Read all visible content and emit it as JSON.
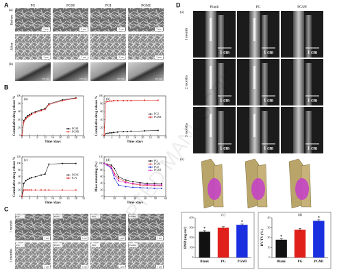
{
  "watermark": "ACCEPTED MANUSCRIPT",
  "panel_a": {
    "label": "A",
    "sub_a": "(a)",
    "sub_b": "(b)",
    "columns": [
      "PG",
      "PGM",
      "PGI",
      "PGMI"
    ],
    "rows": [
      "Before",
      "After"
    ],
    "scale_sem": "5 μm",
    "scale_tem": "100 nm"
  },
  "panel_b": {
    "label": "B"
  },
  "panel_c": {
    "label": "C",
    "columns": [
      "PG",
      "PGM",
      "PGI",
      "PGMI"
    ],
    "rows": [
      "1 month",
      "2 months"
    ],
    "scale": "1 μm"
  },
  "panel_d": {
    "label": "D",
    "sub_a": "(a)",
    "sub_b": "(b)",
    "columns": [
      "Blank",
      "PG",
      "PGMI"
    ],
    "rows": [
      "1 month",
      "2 months",
      "3 months"
    ],
    "scale": "1 cm"
  },
  "chart_data": [
    {
      "type": "line",
      "panel": "(a)",
      "x_label": "Time /days",
      "y_label": "Cumulative drug release %",
      "x": [
        0,
        1,
        2,
        3,
        4,
        5,
        7,
        10,
        12,
        14,
        21,
        28
      ],
      "xlim": [
        0,
        32
      ],
      "xticks": [
        0,
        4,
        8,
        12,
        16,
        20,
        24,
        28,
        32
      ],
      "ylim": [
        0,
        100
      ],
      "yticks": [
        0,
        20,
        40,
        60,
        80,
        100
      ],
      "legend": "lower right",
      "series": [
        {
          "name": "PGM",
          "color": "#111111",
          "values": [
            0,
            38,
            45,
            50,
            53,
            56,
            60,
            65,
            68,
            80,
            90,
            95
          ]
        },
        {
          "name": "PGMI",
          "color": "#e0201b",
          "values": [
            0,
            35,
            42,
            47,
            50,
            53,
            58,
            63,
            66,
            78,
            88,
            94
          ]
        }
      ]
    },
    {
      "type": "line",
      "panel": "(b)",
      "x_label": "Time /days",
      "y_label": "Cumulative drug release %",
      "x": [
        0,
        1,
        2,
        3,
        4,
        5,
        7,
        10,
        12,
        14,
        21,
        28
      ],
      "xlim": [
        0,
        32
      ],
      "xticks": [
        0,
        4,
        8,
        12,
        16,
        20,
        24,
        28,
        32
      ],
      "ylim": [
        0,
        100
      ],
      "yticks": [
        0,
        20,
        40,
        60,
        80,
        100
      ],
      "legend": "center right",
      "series": [
        {
          "name": "PGI",
          "color": "#111111",
          "values": [
            0,
            5,
            6,
            7,
            7,
            8,
            9,
            10,
            10,
            11,
            12,
            13
          ]
        },
        {
          "name": "PGMI",
          "color": "#e0201b",
          "values": [
            0,
            85,
            86,
            87,
            87,
            88,
            88,
            88,
            88,
            88,
            89,
            89
          ]
        }
      ]
    },
    {
      "type": "line",
      "panel": "(c)",
      "x_label": "Time /days",
      "y_label": "Cumulative drug release %",
      "x": [
        0,
        1,
        2,
        3,
        4,
        5,
        7,
        10,
        12,
        14,
        21,
        28
      ],
      "xlim": [
        0,
        32
      ],
      "xticks": [
        0,
        4,
        8,
        12,
        16,
        20,
        24,
        28,
        32
      ],
      "ylim": [
        0,
        120
      ],
      "yticks": [
        0,
        20,
        40,
        60,
        80,
        100,
        120
      ],
      "legend": "center right",
      "series": [
        {
          "name": "MOX",
          "color": "#111111",
          "values": [
            0,
            40,
            48,
            52,
            55,
            57,
            60,
            65,
            68,
            98,
            100,
            100
          ]
        },
        {
          "name": "ICA",
          "color": "#e0201b",
          "values": [
            0,
            20,
            20,
            20,
            20,
            20,
            20,
            20,
            20,
            20,
            20,
            20
          ]
        }
      ]
    },
    {
      "type": "line",
      "panel": "(d)",
      "x_label": "Time /days",
      "y_label": "Mass remaining (%)",
      "x": [
        0,
        3,
        7,
        10,
        14,
        21,
        28,
        35,
        42,
        49,
        56
      ],
      "xlim": [
        0,
        60
      ],
      "xticks": [
        0,
        10,
        20,
        30,
        40,
        50,
        60
      ],
      "ylim": [
        0,
        120
      ],
      "yticks": [
        0,
        20,
        40,
        60,
        80,
        100,
        120
      ],
      "legend": "upper right",
      "series": [
        {
          "name": "PG",
          "color": "#111111",
          "values": [
            100,
            98,
            95,
            85,
            60,
            50,
            45,
            42,
            40,
            40,
            39
          ]
        },
        {
          "name": "PGM",
          "color": "#e0201b",
          "values": [
            100,
            97,
            90,
            70,
            55,
            45,
            38,
            35,
            34,
            33,
            33
          ]
        },
        {
          "name": "PGI",
          "color": "#1a2fe0",
          "values": [
            100,
            95,
            85,
            55,
            35,
            30,
            28,
            27,
            26,
            25,
            25
          ]
        },
        {
          "name": "PGMI",
          "color": "#d21fd2",
          "values": [
            100,
            96,
            88,
            65,
            48,
            42,
            40,
            38,
            36,
            35,
            35
          ]
        }
      ]
    },
    {
      "type": "bar",
      "panel": "(c)",
      "y_label": "BMD (mg/cm³)",
      "categories": [
        "Blank",
        "PG",
        "PGMI"
      ],
      "values": [
        260,
        300,
        330
      ],
      "errors": [
        10,
        12,
        8
      ],
      "colors": [
        "#111111",
        "#e0201b",
        "#1a2fe0"
      ],
      "significance": [
        "*",
        null,
        "*"
      ],
      "ylim": [
        0,
        400
      ],
      "yticks": [
        0,
        100,
        200,
        300,
        400
      ]
    },
    {
      "type": "bar",
      "panel": "(d)",
      "y_label": "BV/TV (%)",
      "categories": [
        "Blank",
        "PG",
        "PGMI"
      ],
      "values": [
        18,
        28,
        37
      ],
      "errors": [
        1,
        1.5,
        1
      ],
      "colors": [
        "#111111",
        "#e0201b",
        "#1a2fe0"
      ],
      "significance": [
        "*",
        null,
        "*"
      ],
      "ylim": [
        0,
        40
      ],
      "yticks": [
        0,
        10,
        20,
        30,
        40
      ]
    }
  ]
}
